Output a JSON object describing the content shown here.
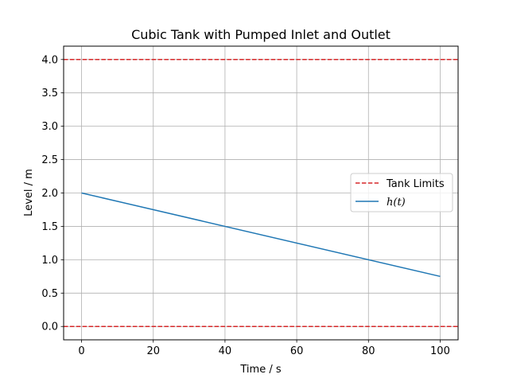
{
  "chart_data": {
    "type": "line",
    "title": "Cubic Tank with Pumped Inlet and Outlet",
    "xlabel": "Time / s",
    "ylabel": "Level / m",
    "xlim": [
      -5,
      105
    ],
    "ylim": [
      -0.2,
      4.2
    ],
    "x_ticks": [
      0,
      20,
      40,
      60,
      80,
      100
    ],
    "y_ticks": [
      0.0,
      0.5,
      1.0,
      1.5,
      2.0,
      2.5,
      3.0,
      3.5,
      4.0
    ],
    "grid": true,
    "legend_position": "center-right",
    "tank_limits": {
      "name": "Tank Limits",
      "values": [
        0.0,
        4.0
      ],
      "color": "#d62728",
      "style": "dashed"
    },
    "series": [
      {
        "name": "h(t)",
        "color": "#1f77b4",
        "x": [
          0,
          100
        ],
        "y": [
          2.0,
          0.75
        ]
      }
    ]
  }
}
